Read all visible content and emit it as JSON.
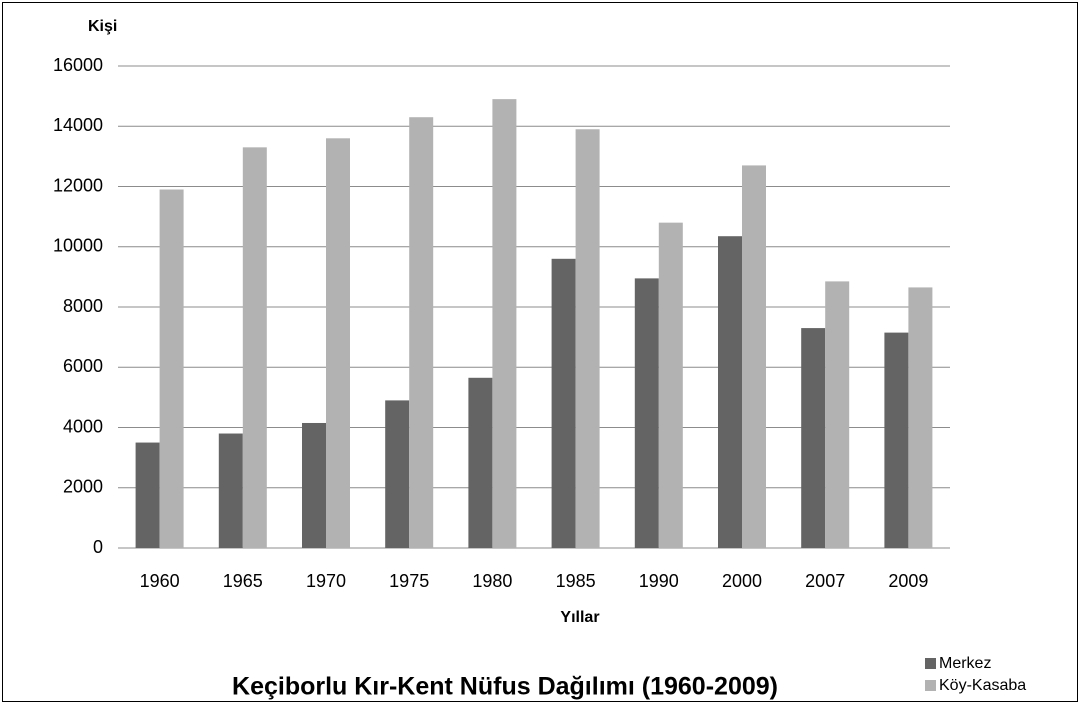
{
  "chart_data": {
    "type": "bar",
    "title": "Keçiborlu Kır-Kent Nüfus Dağılımı (1960-2009)",
    "y_label": "Kişi",
    "x_label": "Yıllar",
    "categories": [
      "1960",
      "1965",
      "1970",
      "1975",
      "1980",
      "1985",
      "1990",
      "2000",
      "2007",
      "2009"
    ],
    "series": [
      {
        "name": "Merkez",
        "color": "#646464",
        "values": [
          3500,
          3800,
          4150,
          4900,
          5650,
          9600,
          8950,
          10350,
          7300,
          7150
        ]
      },
      {
        "name": "Köy-Kasaba",
        "color": "#b2b2b2",
        "values": [
          11900,
          13300,
          13600,
          14300,
          14900,
          13900,
          10800,
          12700,
          8850,
          8650
        ]
      }
    ],
    "ylim": [
      0,
      16000
    ],
    "yticks": [
      0,
      2000,
      4000,
      6000,
      8000,
      10000,
      12000,
      14000,
      16000
    ],
    "grid": true,
    "legend": "bottom-right"
  }
}
